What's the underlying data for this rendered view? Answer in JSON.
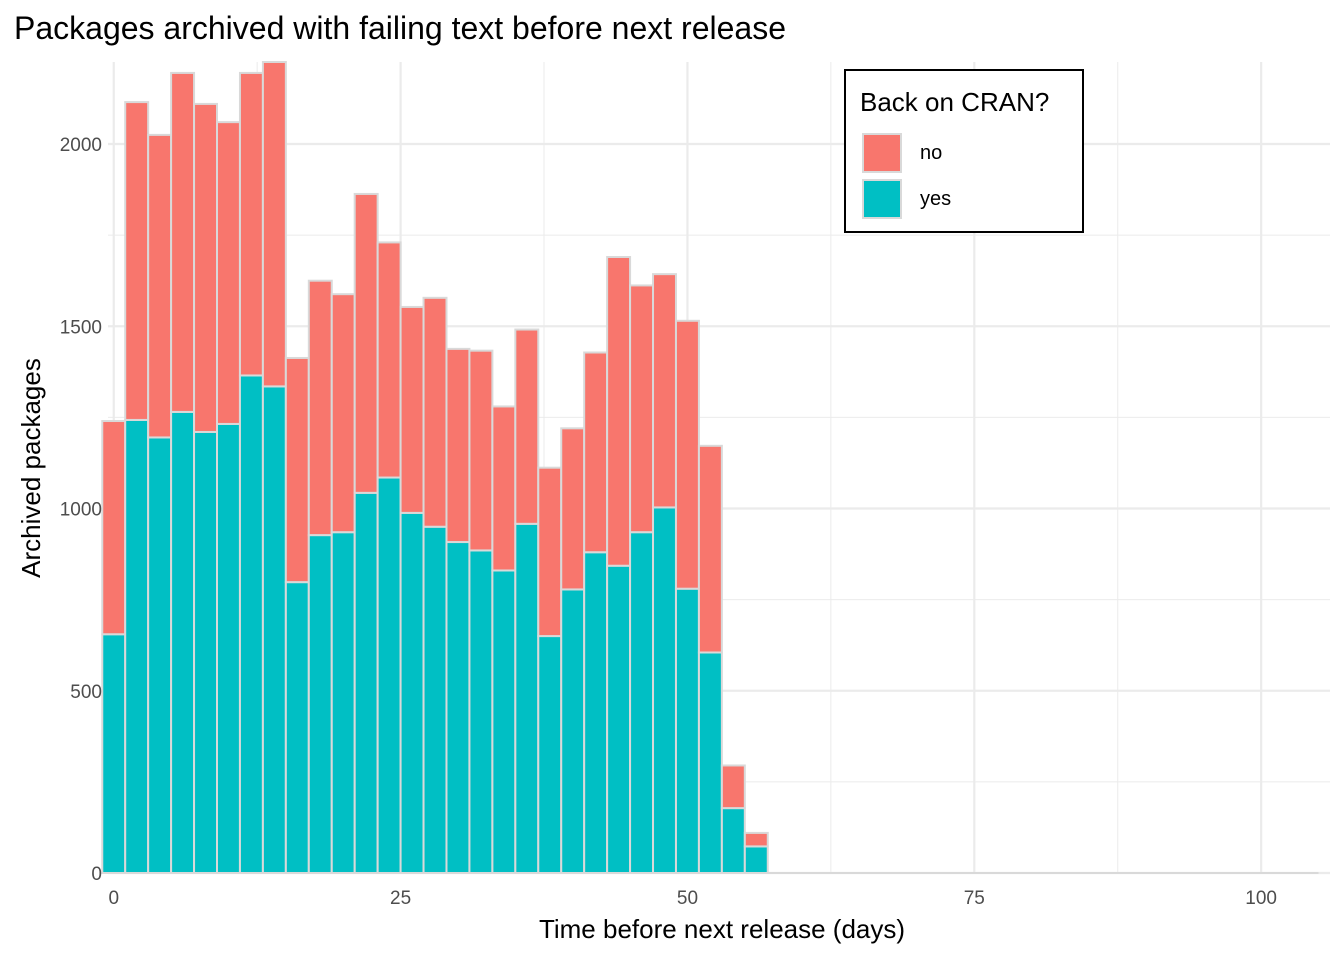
{
  "title": "Packages archived with failing text before next release",
  "colors": {
    "no": "#F8766D",
    "yes": "#00BFC4",
    "bar_outline": "#d9d9d9",
    "grid": "#ebebeb"
  },
  "legend": {
    "title": "Back on CRAN?",
    "items": [
      {
        "label": "no",
        "color": "#F8766D"
      },
      {
        "label": "yes",
        "color": "#00BFC4"
      }
    ]
  },
  "chart_data": {
    "type": "bar",
    "stacked": true,
    "title": "Packages archived with failing text before next release",
    "xlabel": "Time before next release (days)",
    "ylabel": "Archived packages",
    "xlim": [
      -0.5,
      106
    ],
    "ylim": [
      0,
      2225
    ],
    "x_ticks": [
      0,
      25,
      50,
      75,
      100
    ],
    "y_ticks": [
      0,
      500,
      1000,
      1500,
      2000
    ],
    "grid": true,
    "bin_width": 2,
    "legend_position": "top-right",
    "x": [
      0,
      2,
      4,
      6,
      8,
      10,
      12,
      14,
      16,
      18,
      20,
      22,
      24,
      26,
      28,
      30,
      32,
      34,
      36,
      38,
      40,
      42,
      44,
      46,
      48,
      50,
      52,
      54,
      56
    ],
    "series": [
      {
        "name": "yes",
        "values": [
          655,
          1243,
          1195,
          1265,
          1210,
          1232,
          1365,
          1335,
          798,
          927,
          935,
          1043,
          1085,
          988,
          950,
          908,
          885,
          830,
          958,
          650,
          778,
          880,
          843,
          935,
          1003,
          780,
          605,
          178,
          73
        ]
      },
      {
        "name": "no",
        "values": [
          585,
          872,
          830,
          930,
          900,
          828,
          830,
          890,
          615,
          698,
          653,
          820,
          645,
          565,
          628,
          530,
          548,
          450,
          533,
          462,
          442,
          548,
          847,
          677,
          640,
          735,
          567,
          117,
          37
        ]
      }
    ]
  }
}
